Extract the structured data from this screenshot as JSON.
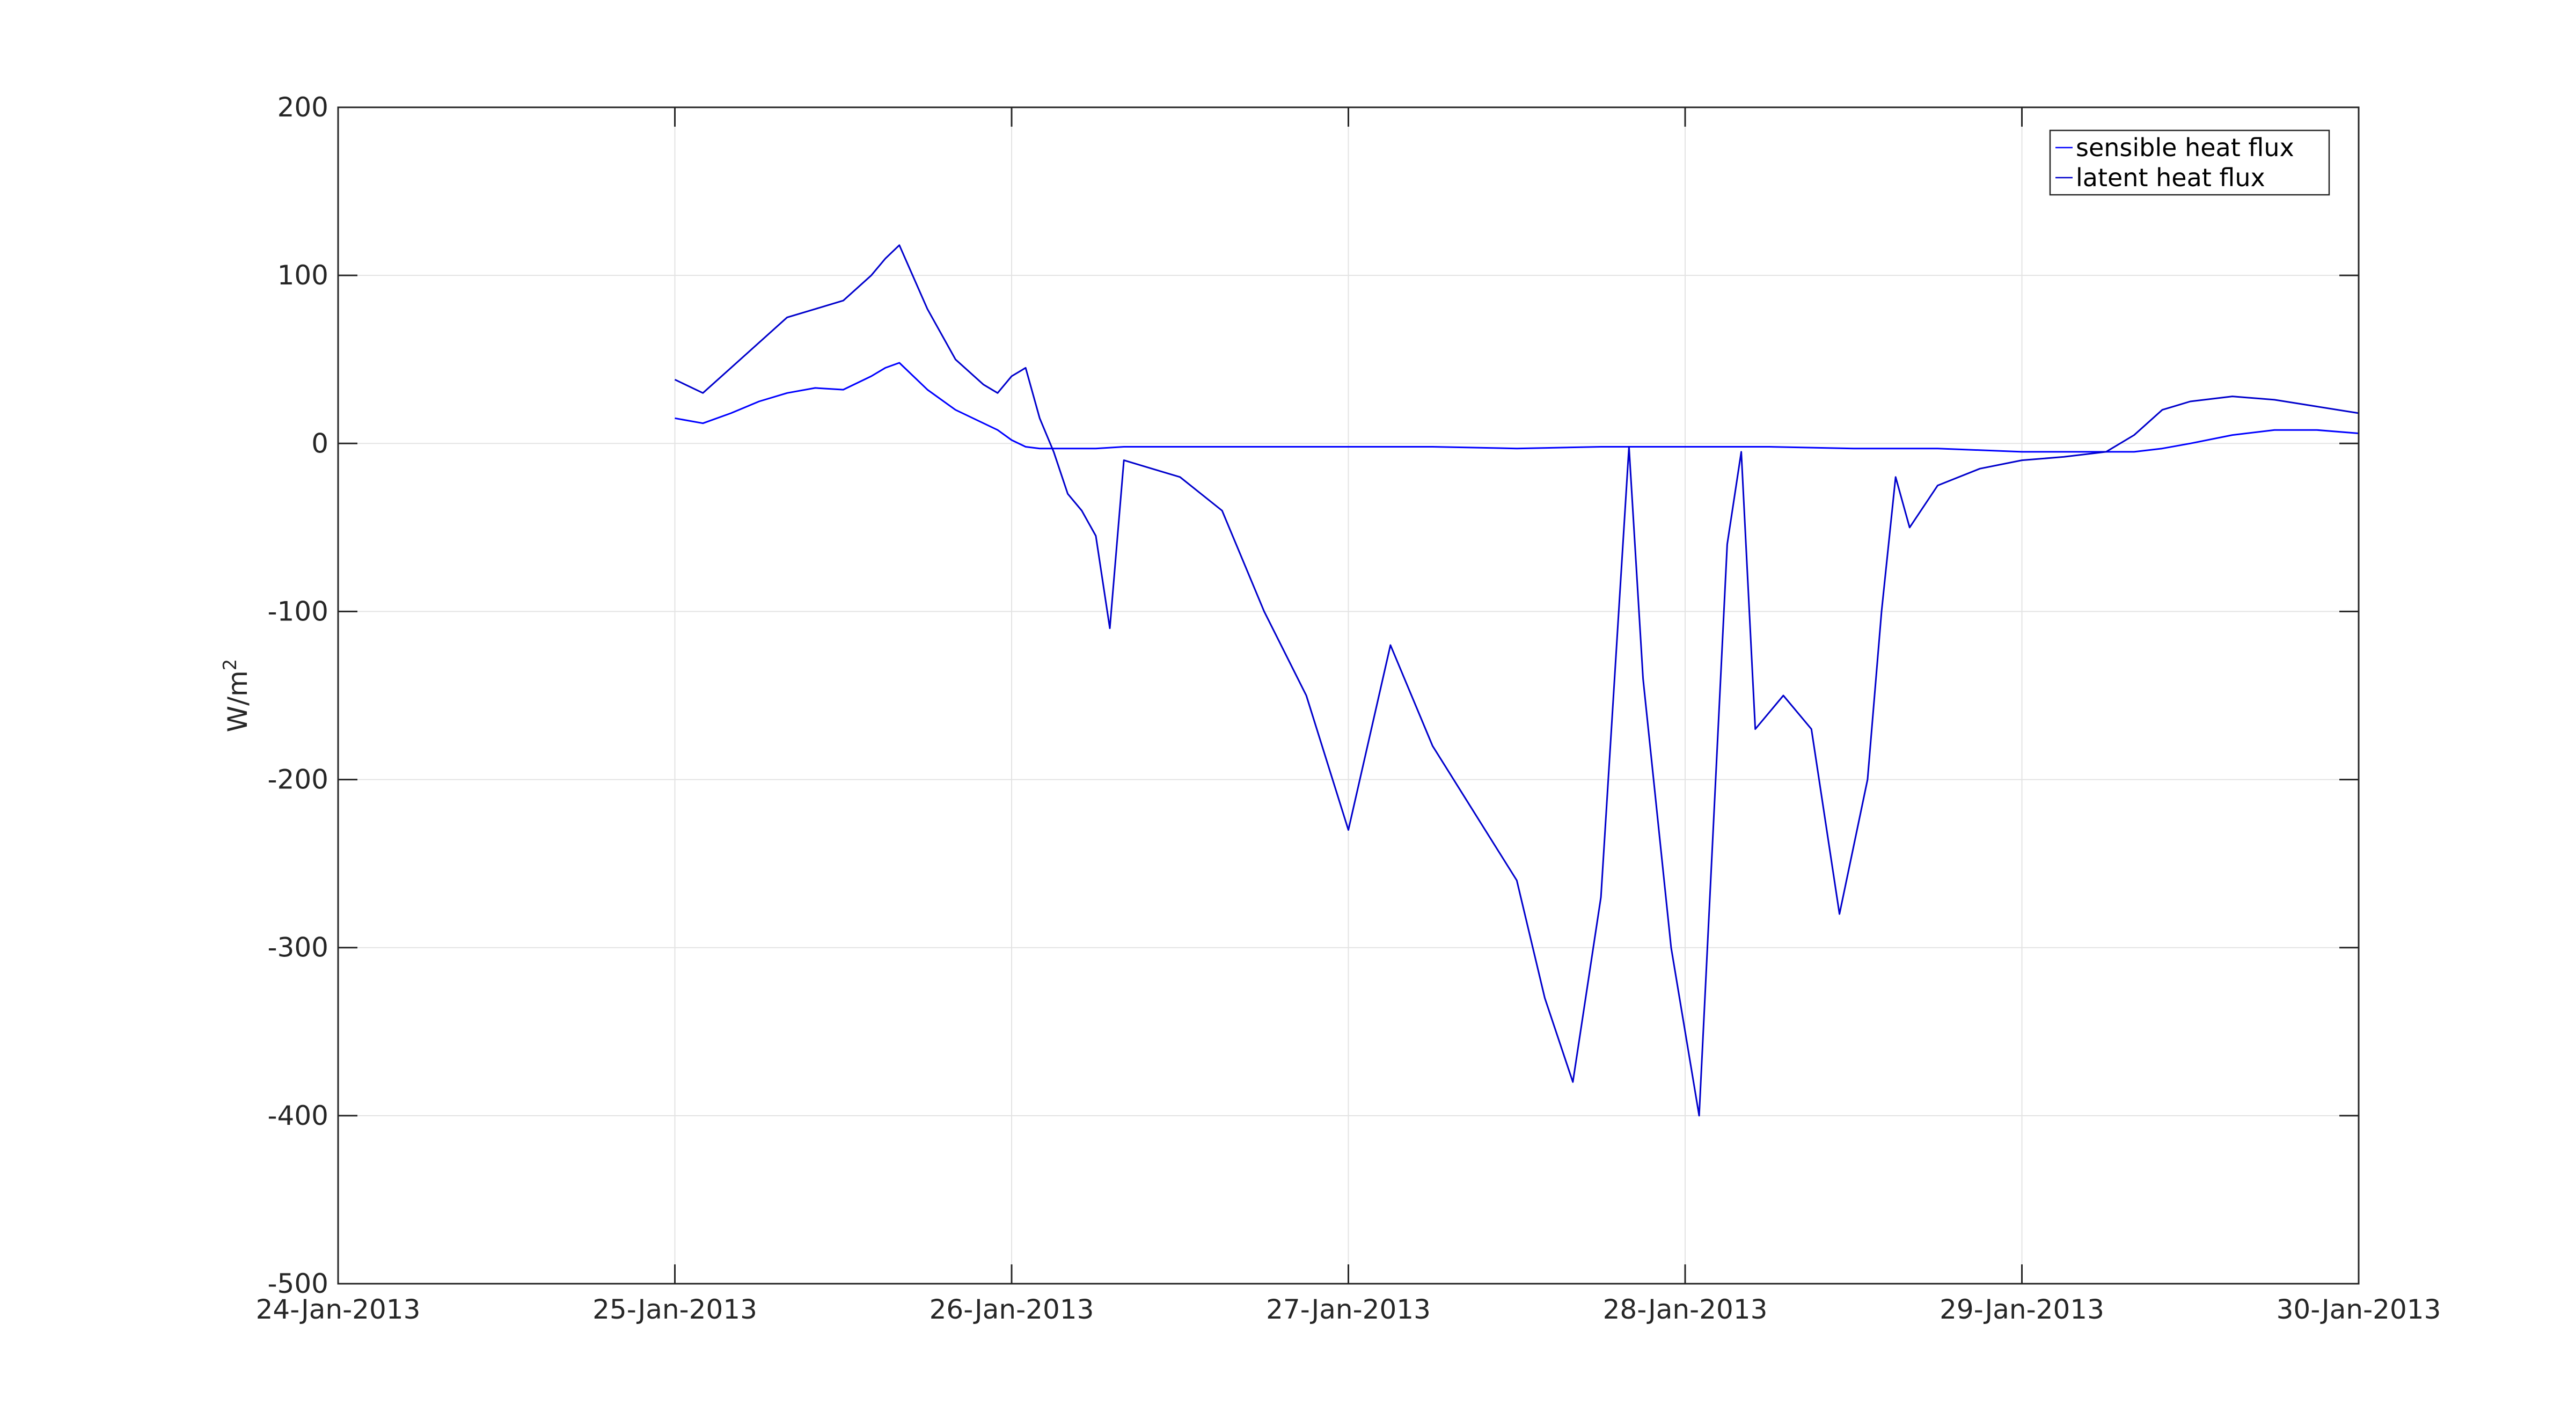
{
  "chart_data": {
    "type": "line",
    "title": "",
    "xlabel": "",
    "ylabel": "W/m",
    "ylabel_superscript": "2",
    "xlim": [
      "24-Jan-2013",
      "30-Jan-2013"
    ],
    "ylim": [
      -500,
      200
    ],
    "x_tick_labels": [
      "24-Jan-2013",
      "25-Jan-2013",
      "26-Jan-2013",
      "27-Jan-2013",
      "28-Jan-2013",
      "29-Jan-2013",
      "30-Jan-2013"
    ],
    "y_ticks": [
      200,
      100,
      0,
      -100,
      -200,
      -300,
      -400,
      -500
    ],
    "y_tick_labels": [
      "200",
      "100",
      "0",
      "-100",
      "-200",
      "-300",
      "-400",
      "-500"
    ],
    "grid": true,
    "legend_position": "top-right",
    "series": [
      {
        "name": "sensible heat flux",
        "color": "#0000ff",
        "x": [
          "25-Jan-2013 00:00",
          "25-Jan-2013 02:00",
          "25-Jan-2013 04:00",
          "25-Jan-2013 06:00",
          "25-Jan-2013 08:00",
          "25-Jan-2013 10:00",
          "25-Jan-2013 12:00",
          "25-Jan-2013 14:00",
          "25-Jan-2013 15:00",
          "25-Jan-2013 16:00",
          "25-Jan-2013 18:00",
          "25-Jan-2013 20:00",
          "25-Jan-2013 22:00",
          "25-Jan-2013 23:00",
          "26-Jan-2013 00:00",
          "26-Jan-2013 01:00",
          "26-Jan-2013 02:00",
          "26-Jan-2013 04:00",
          "26-Jan-2013 06:00",
          "26-Jan-2013 08:00",
          "26-Jan-2013 12:00",
          "26-Jan-2013 18:00",
          "27-Jan-2013 00:00",
          "27-Jan-2013 06:00",
          "27-Jan-2013 12:00",
          "27-Jan-2013 18:00",
          "28-Jan-2013 00:00",
          "28-Jan-2013 06:00",
          "28-Jan-2013 12:00",
          "28-Jan-2013 18:00",
          "29-Jan-2013 00:00",
          "29-Jan-2013 06:00",
          "29-Jan-2013 08:00",
          "29-Jan-2013 10:00",
          "29-Jan-2013 12:00",
          "29-Jan-2013 15:00",
          "29-Jan-2013 18:00",
          "29-Jan-2013 21:00",
          "30-Jan-2013 00:00"
        ],
        "y": [
          15,
          12,
          18,
          25,
          30,
          33,
          32,
          40,
          45,
          48,
          32,
          20,
          12,
          8,
          2,
          -2,
          -3,
          -3,
          -3,
          -2,
          -2,
          -2,
          -2,
          -2,
          -3,
          -2,
          -2,
          -2,
          -3,
          -3,
          -5,
          -5,
          -5,
          -3,
          0,
          5,
          8,
          8,
          6
        ]
      },
      {
        "name": "latent heat flux",
        "color": "#0000cc",
        "x": [
          "25-Jan-2013 00:00",
          "25-Jan-2013 02:00",
          "25-Jan-2013 04:00",
          "25-Jan-2013 06:00",
          "25-Jan-2013 08:00",
          "25-Jan-2013 10:00",
          "25-Jan-2013 12:00",
          "25-Jan-2013 14:00",
          "25-Jan-2013 15:00",
          "25-Jan-2013 16:00",
          "25-Jan-2013 18:00",
          "25-Jan-2013 20:00",
          "25-Jan-2013 22:00",
          "25-Jan-2013 23:00",
          "26-Jan-2013 00:00",
          "26-Jan-2013 01:00",
          "26-Jan-2013 02:00",
          "26-Jan-2013 03:00",
          "26-Jan-2013 04:00",
          "26-Jan-2013 05:00",
          "26-Jan-2013 06:00",
          "26-Jan-2013 07:00",
          "26-Jan-2013 08:00",
          "26-Jan-2013 10:00",
          "26-Jan-2013 12:00",
          "26-Jan-2013 15:00",
          "26-Jan-2013 18:00",
          "26-Jan-2013 21:00",
          "27-Jan-2013 00:00",
          "27-Jan-2013 03:00",
          "27-Jan-2013 06:00",
          "27-Jan-2013 09:00",
          "27-Jan-2013 12:00",
          "27-Jan-2013 14:00",
          "27-Jan-2013 16:00",
          "27-Jan-2013 18:00",
          "27-Jan-2013 20:00",
          "27-Jan-2013 21:00",
          "27-Jan-2013 23:00",
          "28-Jan-2013 01:00",
          "28-Jan-2013 03:00",
          "28-Jan-2013 04:00",
          "28-Jan-2013 05:00",
          "28-Jan-2013 07:00",
          "28-Jan-2013 09:00",
          "28-Jan-2013 11:00",
          "28-Jan-2013 13:00",
          "28-Jan-2013 14:00",
          "28-Jan-2013 15:00",
          "28-Jan-2013 16:00",
          "28-Jan-2013 18:00",
          "28-Jan-2013 21:00",
          "29-Jan-2013 00:00",
          "29-Jan-2013 03:00",
          "29-Jan-2013 06:00",
          "29-Jan-2013 08:00",
          "29-Jan-2013 10:00",
          "29-Jan-2013 12:00",
          "29-Jan-2013 15:00",
          "29-Jan-2013 18:00",
          "29-Jan-2013 21:00",
          "30-Jan-2013 00:00"
        ],
        "y": [
          38,
          30,
          45,
          60,
          75,
          80,
          85,
          100,
          110,
          118,
          80,
          50,
          35,
          30,
          40,
          45,
          15,
          -5,
          -30,
          -40,
          -55,
          -110,
          -10,
          -15,
          -20,
          -40,
          -100,
          -150,
          -230,
          -120,
          -180,
          -220,
          -260,
          -330,
          -380,
          -270,
          -2,
          -140,
          -300,
          -400,
          -60,
          -5,
          -170,
          -150,
          -170,
          -280,
          -200,
          -100,
          -20,
          -50,
          -25,
          -15,
          -10,
          -8,
          -5,
          5,
          20,
          25,
          28,
          26,
          22,
          18
        ]
      }
    ]
  }
}
